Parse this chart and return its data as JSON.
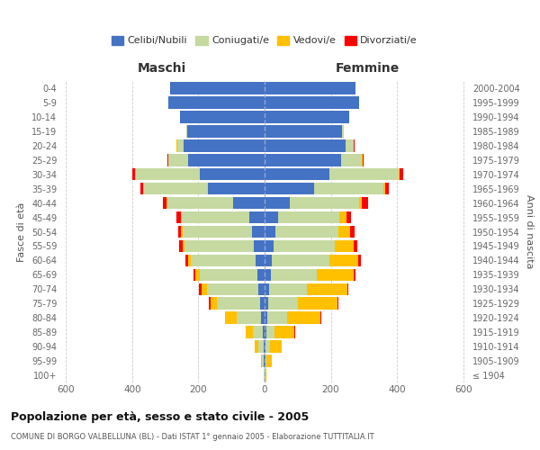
{
  "age_groups": [
    "100+",
    "95-99",
    "90-94",
    "85-89",
    "80-84",
    "75-79",
    "70-74",
    "65-69",
    "60-64",
    "55-59",
    "50-54",
    "45-49",
    "40-44",
    "35-39",
    "30-34",
    "25-29",
    "20-24",
    "15-19",
    "10-14",
    "5-9",
    "0-4"
  ],
  "birth_years": [
    "≤ 1904",
    "1905-1909",
    "1910-1914",
    "1915-1919",
    "1920-1924",
    "1925-1929",
    "1930-1934",
    "1935-1939",
    "1940-1944",
    "1945-1949",
    "1950-1954",
    "1955-1959",
    "1960-1964",
    "1965-1969",
    "1970-1974",
    "1975-1979",
    "1980-1984",
    "1985-1989",
    "1990-1994",
    "1995-1999",
    "2000-2004"
  ],
  "male_celibi": [
    1,
    2,
    4,
    6,
    10,
    14,
    18,
    22,
    28,
    32,
    38,
    46,
    95,
    170,
    195,
    230,
    245,
    235,
    255,
    290,
    285
  ],
  "male_coniugati": [
    2,
    5,
    15,
    30,
    75,
    130,
    155,
    175,
    195,
    210,
    210,
    205,
    200,
    195,
    195,
    60,
    20,
    2,
    1,
    0,
    0
  ],
  "male_vedovi": [
    1,
    4,
    10,
    20,
    35,
    20,
    18,
    12,
    8,
    5,
    4,
    3,
    2,
    1,
    1,
    0,
    1,
    0,
    0,
    0,
    0
  ],
  "male_divorziati": [
    0,
    0,
    0,
    1,
    1,
    5,
    7,
    6,
    8,
    12,
    10,
    12,
    10,
    8,
    8,
    3,
    1,
    0,
    0,
    0,
    0
  ],
  "female_celibi": [
    1,
    2,
    4,
    6,
    8,
    10,
    14,
    18,
    22,
    28,
    32,
    42,
    75,
    150,
    195,
    230,
    245,
    235,
    255,
    285,
    275
  ],
  "female_coniugati": [
    1,
    4,
    12,
    25,
    60,
    90,
    115,
    140,
    175,
    185,
    190,
    185,
    210,
    210,
    210,
    65,
    25,
    3,
    1,
    0,
    0
  ],
  "female_vedovi": [
    3,
    15,
    35,
    60,
    100,
    120,
    120,
    110,
    85,
    55,
    35,
    20,
    10,
    5,
    3,
    1,
    0,
    0,
    0,
    0,
    0
  ],
  "female_divorziati": [
    0,
    0,
    1,
    1,
    2,
    3,
    5,
    6,
    8,
    12,
    14,
    14,
    18,
    10,
    12,
    4,
    2,
    0,
    0,
    0,
    0
  ],
  "color_celibi": "#4472c4",
  "color_coniugati": "#c5d9a0",
  "color_vedovi": "#ffc000",
  "color_divorziati": "#ff0000",
  "title": "Popolazione per età, sesso e stato civile - 2005",
  "subtitle": "COMUNE DI BORGO VALBELLUNA (BL) - Dati ISTAT 1° gennaio 2005 - Elaborazione TUTTITALIA.IT",
  "xlabel_left": "Maschi",
  "xlabel_right": "Femmine",
  "ylabel_left": "Fasce di età",
  "ylabel_right": "Anni di nascita",
  "xlim": 620,
  "background_color": "#ffffff",
  "grid_color": "#cccccc"
}
